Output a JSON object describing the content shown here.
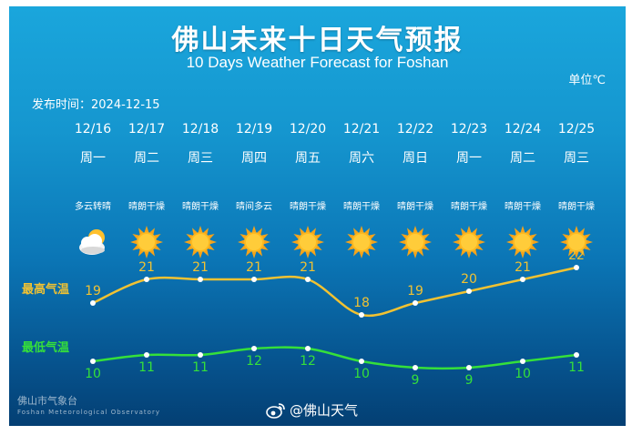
{
  "title_zh": "佛山未来十日天气预报",
  "title_en": "10 Days Weather Forecast for Foshan",
  "unit_label": "单位℃",
  "publish_label": "发布时间：",
  "publish_date": "2024-12-15",
  "high_label": "最高气温",
  "low_label": "最低气温",
  "colors": {
    "high": "#f1c232",
    "low": "#35e03a",
    "background": "#1596cf"
  },
  "days": [
    {
      "date": "12/16",
      "dow": "周一",
      "cond": "多云转晴",
      "icon": "partly-cloudy-icon",
      "high": 19,
      "low": 10
    },
    {
      "date": "12/17",
      "dow": "周二",
      "cond": "晴朗干燥",
      "icon": "sun-icon",
      "high": 21,
      "low": 11
    },
    {
      "date": "12/18",
      "dow": "周三",
      "cond": "晴朗干燥",
      "icon": "sun-icon",
      "high": 21,
      "low": 11
    },
    {
      "date": "12/19",
      "dow": "周四",
      "cond": "晴间多云",
      "icon": "sun-icon",
      "high": 21,
      "low": 12
    },
    {
      "date": "12/20",
      "dow": "周五",
      "cond": "晴朗干燥",
      "icon": "sun-icon",
      "high": 21,
      "low": 12
    },
    {
      "date": "12/21",
      "dow": "周六",
      "cond": "晴朗干燥",
      "icon": "sun-icon",
      "high": 18,
      "low": 10
    },
    {
      "date": "12/22",
      "dow": "周日",
      "cond": "晴朗干燥",
      "icon": "sun-icon",
      "high": 19,
      "low": 9
    },
    {
      "date": "12/23",
      "dow": "周一",
      "cond": "晴朗干燥",
      "icon": "sun-icon",
      "high": 20,
      "low": 9
    },
    {
      "date": "12/24",
      "dow": "周二",
      "cond": "晴朗干燥",
      "icon": "sun-icon",
      "high": 21,
      "low": 10
    },
    {
      "date": "12/25",
      "dow": "周三",
      "cond": "晴朗干燥",
      "icon": "sun-icon",
      "high": 22,
      "low": 11
    }
  ],
  "footer_org": "佛山市气象台",
  "footer_en": "Foshan Meteorological Observatory",
  "weibo_handle": "@佛山天气",
  "weibo_icon": "weibo-icon"
}
